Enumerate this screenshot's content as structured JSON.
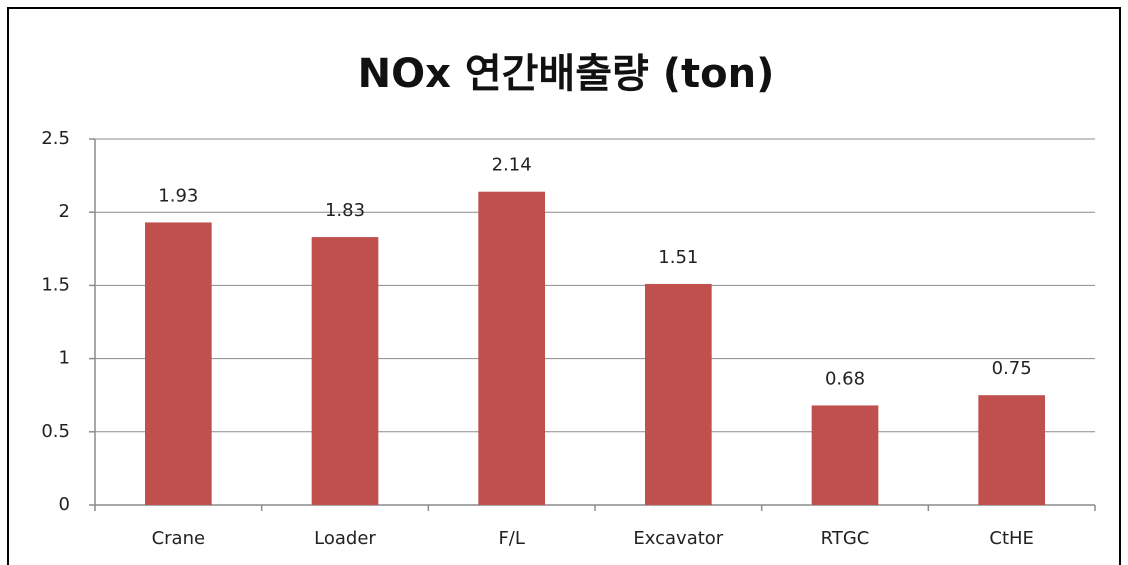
{
  "chart_data": {
    "type": "bar",
    "title": "NOx 연간배출량 (ton)",
    "categories": [
      "Crane",
      "Loader",
      "F/L",
      "Excavator",
      "RTGC",
      "CtHE"
    ],
    "values": [
      1.93,
      1.83,
      2.14,
      1.51,
      0.68,
      0.75
    ],
    "color": "#c0504d",
    "ylim": [
      0,
      2.5
    ],
    "yticks": [
      0,
      0.5,
      1,
      1.5,
      2,
      2.5
    ],
    "grid": true
  }
}
